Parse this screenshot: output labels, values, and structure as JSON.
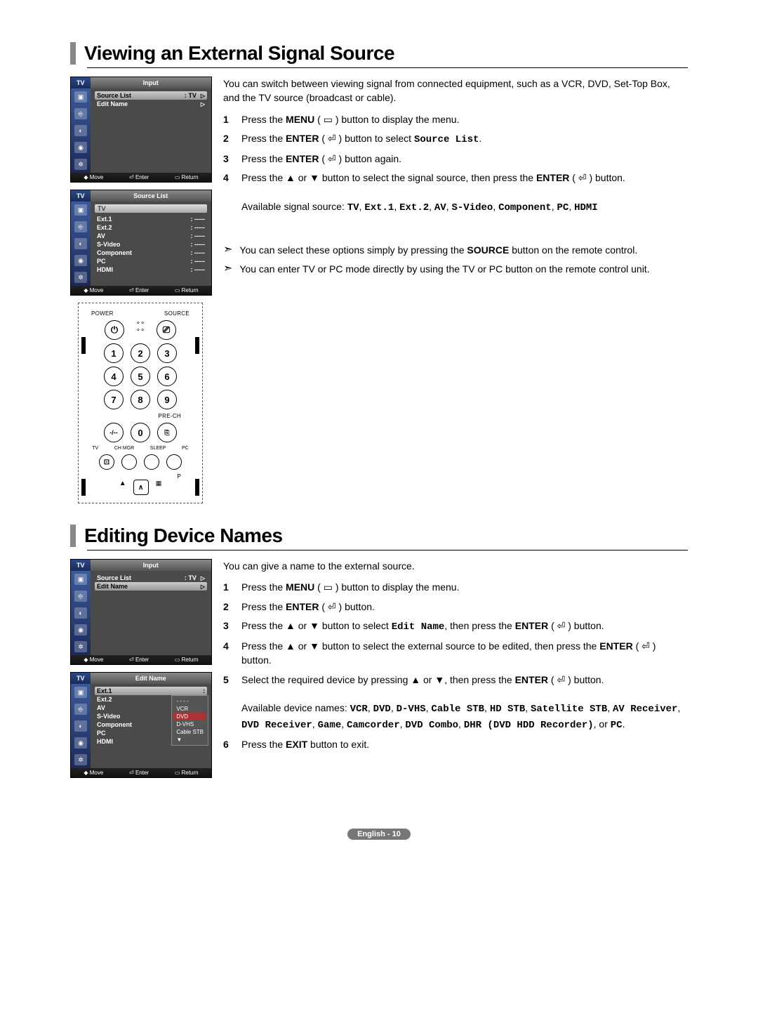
{
  "section1": {
    "title": "Viewing an External Signal Source",
    "intro": "You can switch between viewing signal from connected equipment, such as a VCR, DVD, Set-Top Box, and the TV source (broadcast or cable).",
    "steps": [
      {
        "n": "1",
        "pre": "Press the ",
        "b": "MENU",
        "post": " ( ▭ ) button to display the menu."
      },
      {
        "n": "2",
        "pre": "Press the ",
        "b": "ENTER",
        "post": " ( ⏎ ) button to select ",
        "mono": "Source List",
        "tail": "."
      },
      {
        "n": "3",
        "pre": "Press the ",
        "b": "ENTER",
        "post": " ( ⏎ ) button again."
      },
      {
        "n": "4",
        "pre": "Press the ▲ or ▼ button to select the signal source, then press the ",
        "b": "ENTER",
        "post": " ( ⏎ ) button."
      }
    ],
    "avail_pre": "Available signal source: ",
    "avail_mono": "TV, Ext.1, Ext.2, AV, S-Video, Component, PC, HDMI",
    "notes": [
      "You can select these options simply by pressing the SOURCE button on the remote control.",
      "You can enter TV or PC mode directly by using the TV or PC button on the remote control unit."
    ]
  },
  "section2": {
    "title": "Editing Device Names",
    "intro": "You can give a name to the external source.",
    "steps": [
      {
        "n": "1",
        "text": "Press the MENU ( ▭ ) button to display the menu."
      },
      {
        "n": "2",
        "text": "Press the ENTER ( ⏎ ) button."
      },
      {
        "n": "3",
        "text": "Press the ▲ or ▼ button to select Edit Name, then press the ENTER ( ⏎ ) button."
      },
      {
        "n": "4",
        "text": "Press the ▲ or ▼ button to select the external source to be edited, then press the ENTER ( ⏎ ) button."
      },
      {
        "n": "5",
        "text": "Select the required device by pressing ▲ or ▼, then press the ENTER ( ⏎ ) button."
      }
    ],
    "avail_pre": "Available device names: ",
    "avail_mono": "VCR, DVD, D-VHS, Cable STB, HD STB, Satellite STB, AV Receiver, DVD Receiver, Game, Camcorder, DVD Combo, DHR (DVD HDD Recorder)",
    "avail_post": ", or ",
    "avail_mono2": "PC",
    "avail_tail": ".",
    "step6": {
      "n": "6",
      "text": "Press the EXIT button to exit."
    }
  },
  "osd_input": {
    "tv": "TV",
    "title": "Input",
    "rows": [
      {
        "label": "Source List",
        "val": ": TV",
        "hl": true,
        "arrow": "▷"
      },
      {
        "label": "Edit Name",
        "val": "",
        "arrow": "▷"
      }
    ],
    "footer": [
      "◆ Move",
      "⏎ Enter",
      "▭ Return"
    ]
  },
  "osd_sourcelist": {
    "tv": "TV",
    "title": "Source List",
    "title_row": "TV",
    "rows": [
      {
        "label": "Ext.1",
        "val": ": -----"
      },
      {
        "label": "Ext.2",
        "val": ": -----"
      },
      {
        "label": "AV",
        "val": ": -----"
      },
      {
        "label": "S-Video",
        "val": ": -----"
      },
      {
        "label": "Component",
        "val": ": -----"
      },
      {
        "label": "PC",
        "val": ": -----"
      },
      {
        "label": "HDMI",
        "val": ": -----"
      }
    ],
    "footer": [
      "◆ Move",
      "⏎ Enter",
      "▭ Return"
    ]
  },
  "osd_input2": {
    "tv": "TV",
    "title": "Input",
    "rows": [
      {
        "label": "Source List",
        "val": ": TV",
        "arrow": "▷"
      },
      {
        "label": "Edit Name",
        "val": "",
        "hl": true,
        "arrow": "▷"
      }
    ],
    "footer": [
      "◆ Move",
      "⏎ Enter",
      "▭ Return"
    ]
  },
  "osd_editname": {
    "tv": "TV",
    "title": "Edit Name",
    "rows": [
      {
        "label": "Ext.1",
        "val": ":",
        "hl": true,
        "popup": true
      },
      {
        "label": "Ext.2",
        "val": ":"
      },
      {
        "label": "AV",
        "val": ":"
      },
      {
        "label": "S-Video",
        "val": ":"
      },
      {
        "label": "Component",
        "val": ":"
      },
      {
        "label": "PC",
        "val": ":"
      },
      {
        "label": "HDMI",
        "val": ": -----"
      }
    ],
    "popup": [
      "- - - -",
      "VCR",
      "DVD",
      "D-VHS",
      "Cable STB",
      "▼"
    ],
    "footer": [
      "◆ Move",
      "⏎ Enter",
      "▭ Return"
    ]
  },
  "remote": {
    "top_left": "POWER",
    "top_right": "SOURCE",
    "numpad": [
      "1",
      "2",
      "3",
      "4",
      "5",
      "6",
      "7",
      "8",
      "9",
      "-/--",
      "0",
      "⎘"
    ],
    "prech": "PRE-CH",
    "bottom": [
      "TV",
      "CH MGR",
      "SLEEP",
      "PC"
    ],
    "p": "P"
  },
  "footer": "English - 10",
  "notes_bold": {
    "source": "SOURCE"
  }
}
